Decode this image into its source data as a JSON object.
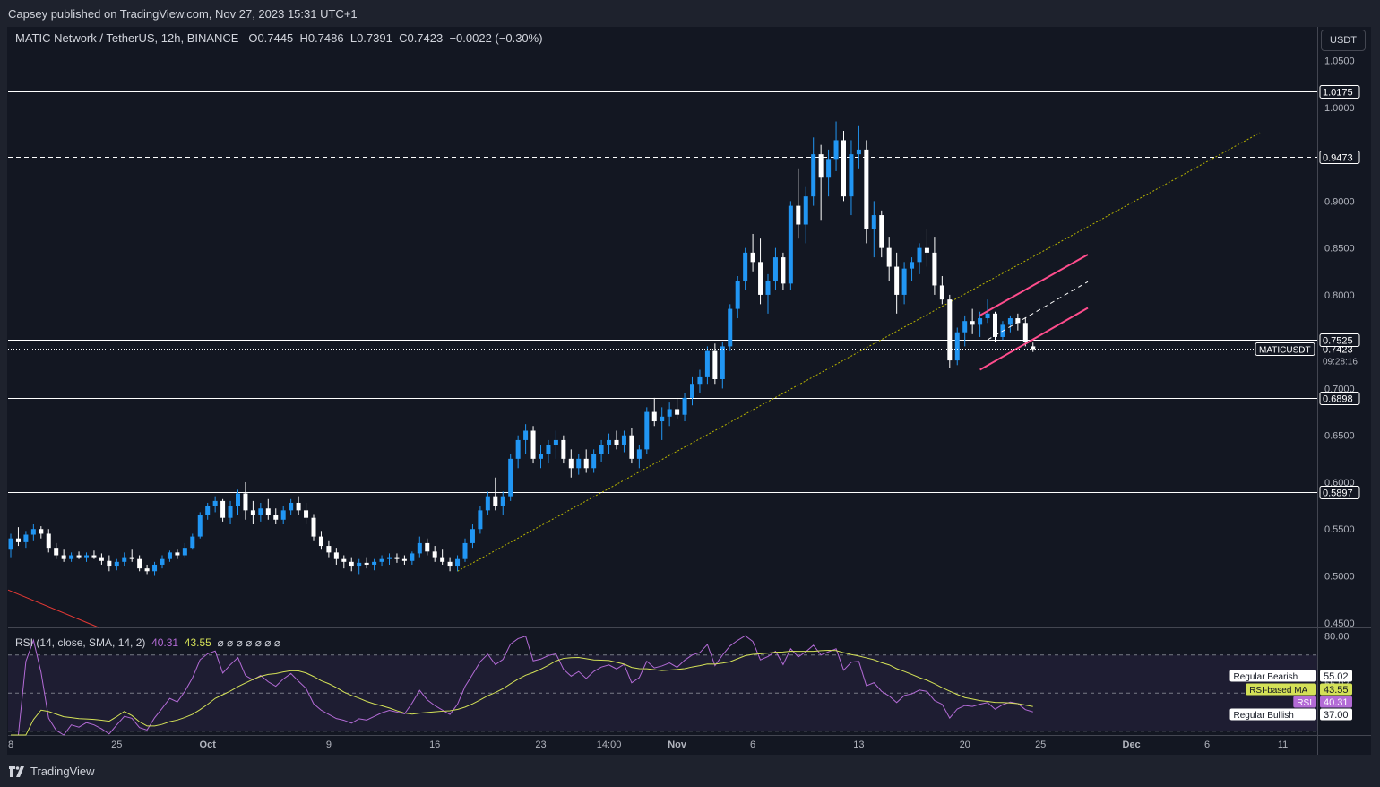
{
  "header": {
    "published_text": "Capsey published on TradingView.com, Nov 27, 2023 15:31 UTC+1"
  },
  "legend": {
    "symbol": "MATIC Network / TetherUS, 12h, BINANCE",
    "open_label": "O",
    "open": "0.7445",
    "high_label": "H",
    "high": "0.7486",
    "low_label": "L",
    "low": "0.7391",
    "close_label": "C",
    "close": "0.7423",
    "change": "−0.0022 (−0.30%)"
  },
  "currency": "USDT",
  "rsi_legend": {
    "name": "RSI (14, close, SMA, 14, 2)",
    "rsi_value": "40.31",
    "ma_value": "43.55",
    "extras": "⌀ ⌀ ⌀ ⌀ ⌀ ⌀ ⌀"
  },
  "footer": {
    "brand": "TradingView"
  },
  "colors": {
    "up": "#2196f3",
    "down": "#ffffff",
    "bg": "#131722",
    "channel": "#ff4d8d",
    "trendline": "#b8b400",
    "rsi": "#b36bd6",
    "rsi_ma": "#d4e157"
  },
  "chart_data": {
    "type": "candlestick",
    "title": "MATIC Network / TetherUS, 12h, BINANCE",
    "price_axis": {
      "ylim": [
        0.445,
        1.085
      ],
      "ticks": [
        "1.0500",
        "1.0000",
        "0.9000",
        "0.8500",
        "0.8000",
        "0.7000",
        "0.6500",
        "0.6000",
        "0.5500",
        "0.5000",
        "0.4500"
      ]
    },
    "x_axis": {
      "date_ticks": [
        {
          "label": "8",
          "i": 0
        },
        {
          "label": "25",
          "i": 14
        },
        {
          "label": "Oct",
          "i": 26
        },
        {
          "label": "9",
          "i": 42
        },
        {
          "label": "16",
          "i": 56
        },
        {
          "label": "23",
          "i": 70
        },
        {
          "label": "14:00",
          "i": 79
        },
        {
          "label": "Nov",
          "i": 88
        },
        {
          "label": "6",
          "i": 98
        },
        {
          "label": "13",
          "i": 112
        },
        {
          "label": "20",
          "i": 126
        },
        {
          "label": "25",
          "i": 136
        },
        {
          "label": "Dec",
          "i": 148
        },
        {
          "label": "6",
          "i": 158
        },
        {
          "label": "11",
          "i": 168
        }
      ]
    },
    "horizontal_levels": [
      {
        "price": 1.0175,
        "label": "1.0175",
        "style": "solid"
      },
      {
        "price": 0.9473,
        "label": "0.9473",
        "style": "dashed"
      },
      {
        "price": 0.7525,
        "label": "0.7525",
        "style": "solid"
      },
      {
        "price": 0.6898,
        "label": "0.6898",
        "style": "solid"
      },
      {
        "price": 0.5897,
        "label": "0.5897",
        "style": "solid"
      }
    ],
    "last_price": {
      "label": "0.7423",
      "symbol": "MATICUSDT",
      "countdown": "09:28:16"
    },
    "rsi": {
      "ylim": [
        28,
        84
      ],
      "levels": [
        {
          "value": 70,
          "style": "dashed"
        },
        {
          "value": 50,
          "style": "dashed"
        },
        {
          "value": 30,
          "style": "dashed"
        }
      ],
      "axis_labels": [
        "80.00",
        "55.02"
      ],
      "markers": [
        {
          "label": "Regular Bearish",
          "value": "55.02"
        },
        {
          "label": "RSI-based MA",
          "value": "43.55"
        },
        {
          "label": "RSI",
          "value": "40.31"
        },
        {
          "label": "Regular Bullish",
          "value": "37.00"
        }
      ]
    },
    "candles": [
      [
        0.528,
        0.545,
        0.52,
        0.54
      ],
      [
        0.54,
        0.552,
        0.532,
        0.536
      ],
      [
        0.536,
        0.548,
        0.53,
        0.544
      ],
      [
        0.544,
        0.555,
        0.538,
        0.55
      ],
      [
        0.55,
        0.553,
        0.54,
        0.545
      ],
      [
        0.545,
        0.55,
        0.525,
        0.53
      ],
      [
        0.53,
        0.535,
        0.518,
        0.522
      ],
      [
        0.522,
        0.528,
        0.515,
        0.518
      ],
      [
        0.518,
        0.525,
        0.515,
        0.522
      ],
      [
        0.522,
        0.526,
        0.518,
        0.52
      ],
      [
        0.52,
        0.525,
        0.515,
        0.522
      ],
      [
        0.522,
        0.527,
        0.518,
        0.52
      ],
      [
        0.52,
        0.524,
        0.512,
        0.516
      ],
      [
        0.516,
        0.522,
        0.505,
        0.51
      ],
      [
        0.51,
        0.518,
        0.506,
        0.515
      ],
      [
        0.515,
        0.525,
        0.51,
        0.52
      ],
      [
        0.52,
        0.528,
        0.515,
        0.518
      ],
      [
        0.518,
        0.522,
        0.505,
        0.508
      ],
      [
        0.508,
        0.512,
        0.502,
        0.505
      ],
      [
        0.505,
        0.515,
        0.5,
        0.512
      ],
      [
        0.512,
        0.522,
        0.508,
        0.518
      ],
      [
        0.518,
        0.527,
        0.515,
        0.525
      ],
      [
        0.525,
        0.528,
        0.518,
        0.522
      ],
      [
        0.522,
        0.535,
        0.52,
        0.53
      ],
      [
        0.53,
        0.545,
        0.528,
        0.542
      ],
      [
        0.542,
        0.568,
        0.54,
        0.565
      ],
      [
        0.565,
        0.578,
        0.56,
        0.575
      ],
      [
        0.575,
        0.585,
        0.568,
        0.58
      ],
      [
        0.58,
        0.582,
        0.558,
        0.562
      ],
      [
        0.562,
        0.58,
        0.555,
        0.575
      ],
      [
        0.575,
        0.592,
        0.565,
        0.588
      ],
      [
        0.588,
        0.6,
        0.56,
        0.57
      ],
      [
        0.57,
        0.58,
        0.555,
        0.565
      ],
      [
        0.565,
        0.578,
        0.558,
        0.572
      ],
      [
        0.572,
        0.582,
        0.56,
        0.565
      ],
      [
        0.565,
        0.572,
        0.555,
        0.56
      ],
      [
        0.56,
        0.575,
        0.555,
        0.57
      ],
      [
        0.57,
        0.582,
        0.565,
        0.578
      ],
      [
        0.578,
        0.585,
        0.565,
        0.57
      ],
      [
        0.57,
        0.578,
        0.555,
        0.562
      ],
      [
        0.562,
        0.566,
        0.538,
        0.542
      ],
      [
        0.542,
        0.548,
        0.528,
        0.532
      ],
      [
        0.532,
        0.538,
        0.52,
        0.525
      ],
      [
        0.525,
        0.53,
        0.512,
        0.518
      ],
      [
        0.518,
        0.522,
        0.508,
        0.515
      ],
      [
        0.515,
        0.52,
        0.505,
        0.51
      ],
      [
        0.51,
        0.518,
        0.502,
        0.514
      ],
      [
        0.514,
        0.52,
        0.508,
        0.512
      ],
      [
        0.512,
        0.518,
        0.506,
        0.515
      ],
      [
        0.515,
        0.522,
        0.51,
        0.518
      ],
      [
        0.518,
        0.524,
        0.512,
        0.52
      ],
      [
        0.52,
        0.524,
        0.514,
        0.518
      ],
      [
        0.518,
        0.522,
        0.512,
        0.516
      ],
      [
        0.516,
        0.526,
        0.512,
        0.524
      ],
      [
        0.524,
        0.542,
        0.52,
        0.535
      ],
      [
        0.535,
        0.54,
        0.522,
        0.526
      ],
      [
        0.526,
        0.532,
        0.515,
        0.52
      ],
      [
        0.52,
        0.528,
        0.512,
        0.515
      ],
      [
        0.515,
        0.52,
        0.505,
        0.51
      ],
      [
        0.51,
        0.522,
        0.505,
        0.518
      ],
      [
        0.518,
        0.54,
        0.515,
        0.535
      ],
      [
        0.535,
        0.555,
        0.53,
        0.55
      ],
      [
        0.55,
        0.575,
        0.545,
        0.57
      ],
      [
        0.57,
        0.59,
        0.565,
        0.585
      ],
      [
        0.585,
        0.605,
        0.57,
        0.575
      ],
      [
        0.575,
        0.59,
        0.565,
        0.585
      ],
      [
        0.585,
        0.63,
        0.58,
        0.625
      ],
      [
        0.625,
        0.65,
        0.615,
        0.645
      ],
      [
        0.645,
        0.662,
        0.63,
        0.655
      ],
      [
        0.655,
        0.66,
        0.62,
        0.625
      ],
      [
        0.625,
        0.64,
        0.615,
        0.63
      ],
      [
        0.63,
        0.645,
        0.62,
        0.64
      ],
      [
        0.64,
        0.655,
        0.625,
        0.645
      ],
      [
        0.645,
        0.65,
        0.62,
        0.625
      ],
      [
        0.625,
        0.635,
        0.605,
        0.615
      ],
      [
        0.615,
        0.63,
        0.608,
        0.625
      ],
      [
        0.625,
        0.635,
        0.61,
        0.615
      ],
      [
        0.615,
        0.635,
        0.61,
        0.63
      ],
      [
        0.63,
        0.645,
        0.622,
        0.64
      ],
      [
        0.64,
        0.652,
        0.63,
        0.645
      ],
      [
        0.645,
        0.655,
        0.635,
        0.64
      ],
      [
        0.64,
        0.655,
        0.632,
        0.65
      ],
      [
        0.65,
        0.658,
        0.62,
        0.625
      ],
      [
        0.625,
        0.64,
        0.615,
        0.635
      ],
      [
        0.635,
        0.68,
        0.63,
        0.675
      ],
      [
        0.675,
        0.69,
        0.66,
        0.665
      ],
      [
        0.665,
        0.68,
        0.645,
        0.67
      ],
      [
        0.67,
        0.685,
        0.66,
        0.678
      ],
      [
        0.678,
        0.69,
        0.668,
        0.672
      ],
      [
        0.672,
        0.695,
        0.665,
        0.69
      ],
      [
        0.69,
        0.712,
        0.682,
        0.705
      ],
      [
        0.705,
        0.72,
        0.695,
        0.712
      ],
      [
        0.712,
        0.745,
        0.705,
        0.74
      ],
      [
        0.74,
        0.748,
        0.705,
        0.71
      ],
      [
        0.71,
        0.75,
        0.7,
        0.745
      ],
      [
        0.745,
        0.79,
        0.74,
        0.785
      ],
      [
        0.785,
        0.82,
        0.775,
        0.815
      ],
      [
        0.815,
        0.85,
        0.805,
        0.845
      ],
      [
        0.845,
        0.865,
        0.825,
        0.835
      ],
      [
        0.835,
        0.86,
        0.79,
        0.8
      ],
      [
        0.8,
        0.822,
        0.78,
        0.815
      ],
      [
        0.815,
        0.85,
        0.805,
        0.84
      ],
      [
        0.84,
        0.845,
        0.805,
        0.812
      ],
      [
        0.812,
        0.9,
        0.805,
        0.895
      ],
      [
        0.895,
        0.935,
        0.86,
        0.875
      ],
      [
        0.875,
        0.915,
        0.855,
        0.905
      ],
      [
        0.905,
        0.968,
        0.895,
        0.95
      ],
      [
        0.95,
        0.96,
        0.88,
        0.925
      ],
      [
        0.925,
        0.955,
        0.905,
        0.945
      ],
      [
        0.945,
        0.985,
        0.932,
        0.965
      ],
      [
        0.965,
        0.975,
        0.9,
        0.905
      ],
      [
        0.905,
        0.965,
        0.885,
        0.95
      ],
      [
        0.95,
        0.98,
        0.935,
        0.955
      ],
      [
        0.955,
        0.965,
        0.855,
        0.87
      ],
      [
        0.87,
        0.9,
        0.84,
        0.885
      ],
      [
        0.885,
        0.89,
        0.84,
        0.85
      ],
      [
        0.85,
        0.862,
        0.815,
        0.83
      ],
      [
        0.83,
        0.845,
        0.78,
        0.8
      ],
      [
        0.8,
        0.835,
        0.79,
        0.828
      ],
      [
        0.828,
        0.84,
        0.815,
        0.835
      ],
      [
        0.835,
        0.855,
        0.822,
        0.85
      ],
      [
        0.85,
        0.87,
        0.83,
        0.845
      ],
      [
        0.845,
        0.862,
        0.8,
        0.81
      ],
      [
        0.81,
        0.82,
        0.79,
        0.795
      ],
      [
        0.795,
        0.8,
        0.722,
        0.73
      ],
      [
        0.73,
        0.765,
        0.725,
        0.76
      ],
      [
        0.76,
        0.778,
        0.745,
        0.772
      ],
      [
        0.772,
        0.785,
        0.758,
        0.768
      ],
      [
        0.768,
        0.782,
        0.755,
        0.775
      ],
      [
        0.775,
        0.795,
        0.77,
        0.78
      ],
      [
        0.78,
        0.782,
        0.75,
        0.755
      ],
      [
        0.755,
        0.772,
        0.752,
        0.768
      ],
      [
        0.768,
        0.778,
        0.76,
        0.775
      ],
      [
        0.775,
        0.78,
        0.762,
        0.77
      ],
      [
        0.77,
        0.775,
        0.745,
        0.75
      ],
      [
        0.745,
        0.749,
        0.739,
        0.742
      ]
    ]
  }
}
